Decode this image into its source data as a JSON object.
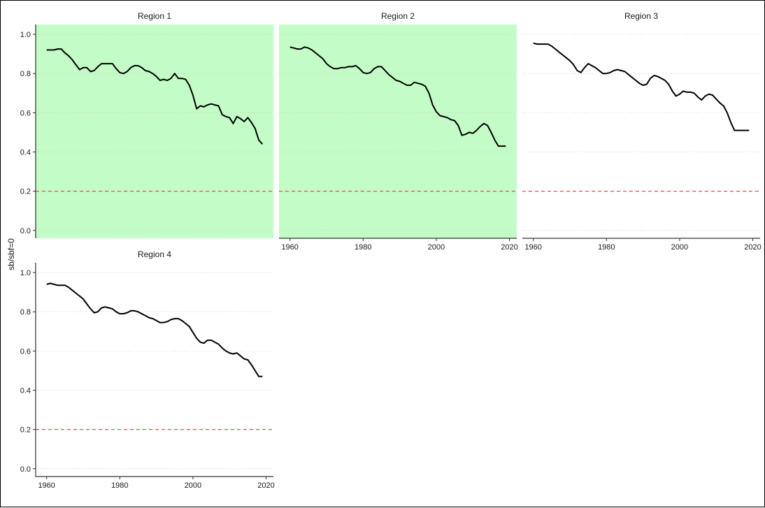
{
  "chart_data": {
    "type": "line",
    "ylabel": "sb/sbf=0",
    "xlabel": "",
    "xlim": [
      1957,
      2022
    ],
    "ylim": [
      -0.04,
      1.05
    ],
    "x_ticks": [
      1960,
      1980,
      2000,
      2020
    ],
    "y_ticks": [
      0.0,
      0.2,
      0.4,
      0.6,
      0.8,
      1.0
    ],
    "y_tick_labels": [
      "0.0",
      "0.2",
      "0.4",
      "0.6",
      "0.8",
      "1.0"
    ],
    "reference_line": {
      "y": 0.2,
      "style": "dashed",
      "color": "#e05555"
    },
    "grid": "horizontal dotted",
    "highlight_color": "#c3fcc7",
    "panels": [
      {
        "title": "Region 1",
        "highlight": true,
        "series": [
          {
            "x": [
              1960,
              1961,
              1962,
              1963,
              1964,
              1965,
              1966,
              1967,
              1968,
              1969,
              1970,
              1971,
              1972,
              1973,
              1974,
              1975,
              1976,
              1977,
              1978,
              1979,
              1980,
              1981,
              1982,
              1983,
              1984,
              1985,
              1986,
              1987,
              1988,
              1989,
              1990,
              1991,
              1992,
              1993,
              1994,
              1995,
              1996,
              1997,
              1998,
              1999,
              2000,
              2001,
              2002,
              2003,
              2004,
              2005,
              2006,
              2007,
              2008,
              2009,
              2010,
              2011,
              2012,
              2013,
              2014,
              2015,
              2016,
              2017,
              2018,
              2019
            ],
            "y": [
              0.92,
              0.92,
              0.92,
              0.925,
              0.925,
              0.905,
              0.89,
              0.87,
              0.845,
              0.82,
              0.83,
              0.83,
              0.81,
              0.815,
              0.835,
              0.85,
              0.85,
              0.85,
              0.85,
              0.825,
              0.805,
              0.8,
              0.81,
              0.83,
              0.84,
              0.84,
              0.83,
              0.815,
              0.81,
              0.8,
              0.785,
              0.765,
              0.77,
              0.765,
              0.775,
              0.8,
              0.775,
              0.775,
              0.77,
              0.74,
              0.69,
              0.62,
              0.635,
              0.63,
              0.64,
              0.645,
              0.64,
              0.635,
              0.59,
              0.58,
              0.575,
              0.545,
              0.58,
              0.57,
              0.555,
              0.575,
              0.55,
              0.52,
              0.46,
              0.44
            ]
          }
        ]
      },
      {
        "title": "Region 2",
        "highlight": true,
        "series": [
          {
            "x": [
              1960,
              1961,
              1962,
              1963,
              1964,
              1965,
              1966,
              1967,
              1968,
              1969,
              1970,
              1971,
              1972,
              1973,
              1974,
              1975,
              1976,
              1977,
              1978,
              1979,
              1980,
              1981,
              1982,
              1983,
              1984,
              1985,
              1986,
              1987,
              1988,
              1989,
              1990,
              1991,
              1992,
              1993,
              1994,
              1995,
              1996,
              1997,
              1998,
              1999,
              2000,
              2001,
              2002,
              2003,
              2004,
              2005,
              2006,
              2007,
              2008,
              2009,
              2010,
              2011,
              2012,
              2013,
              2014,
              2015,
              2016,
              2017,
              2018,
              2019
            ],
            "y": [
              0.935,
              0.93,
              0.925,
              0.925,
              0.935,
              0.93,
              0.92,
              0.905,
              0.89,
              0.875,
              0.85,
              0.835,
              0.825,
              0.825,
              0.83,
              0.83,
              0.835,
              0.835,
              0.84,
              0.825,
              0.805,
              0.8,
              0.805,
              0.825,
              0.835,
              0.835,
              0.815,
              0.795,
              0.78,
              0.765,
              0.76,
              0.75,
              0.74,
              0.74,
              0.755,
              0.75,
              0.745,
              0.735,
              0.7,
              0.64,
              0.605,
              0.585,
              0.58,
              0.575,
              0.565,
              0.56,
              0.535,
              0.485,
              0.49,
              0.5,
              0.495,
              0.51,
              0.53,
              0.545,
              0.535,
              0.5,
              0.46,
              0.43,
              0.43,
              0.43
            ]
          }
        ]
      },
      {
        "title": "Region 3",
        "highlight": false,
        "series": [
          {
            "x": [
              1960,
              1961,
              1962,
              1963,
              1964,
              1965,
              1966,
              1967,
              1968,
              1969,
              1970,
              1971,
              1972,
              1973,
              1974,
              1975,
              1976,
              1977,
              1978,
              1979,
              1980,
              1981,
              1982,
              1983,
              1984,
              1985,
              1986,
              1987,
              1988,
              1989,
              1990,
              1991,
              1992,
              1993,
              1994,
              1995,
              1996,
              1997,
              1998,
              1999,
              2000,
              2001,
              2002,
              2003,
              2004,
              2005,
              2006,
              2007,
              2008,
              2009,
              2010,
              2011,
              2012,
              2013,
              2014,
              2015,
              2016,
              2017,
              2018,
              2019
            ],
            "y": [
              0.955,
              0.95,
              0.95,
              0.95,
              0.95,
              0.94,
              0.925,
              0.91,
              0.895,
              0.88,
              0.865,
              0.845,
              0.815,
              0.805,
              0.83,
              0.85,
              0.84,
              0.83,
              0.815,
              0.8,
              0.8,
              0.805,
              0.815,
              0.82,
              0.815,
              0.81,
              0.795,
              0.78,
              0.765,
              0.75,
              0.74,
              0.745,
              0.775,
              0.79,
              0.785,
              0.775,
              0.765,
              0.745,
              0.71,
              0.685,
              0.695,
              0.71,
              0.705,
              0.705,
              0.7,
              0.68,
              0.665,
              0.685,
              0.695,
              0.69,
              0.67,
              0.65,
              0.635,
              0.6,
              0.55,
              0.51,
              0.51,
              0.51,
              0.51,
              0.51
            ]
          }
        ]
      },
      {
        "title": "Region 4",
        "highlight": false,
        "series": [
          {
            "x": [
              1960,
              1961,
              1962,
              1963,
              1964,
              1965,
              1966,
              1967,
              1968,
              1969,
              1970,
              1971,
              1972,
              1973,
              1974,
              1975,
              1976,
              1977,
              1978,
              1979,
              1980,
              1981,
              1982,
              1983,
              1984,
              1985,
              1986,
              1987,
              1988,
              1989,
              1990,
              1991,
              1992,
              1993,
              1994,
              1995,
              1996,
              1997,
              1998,
              1999,
              2000,
              2001,
              2002,
              2003,
              2004,
              2005,
              2006,
              2007,
              2008,
              2009,
              2010,
              2011,
              2012,
              2013,
              2014,
              2015,
              2016,
              2017,
              2018,
              2019
            ],
            "y": [
              0.94,
              0.945,
              0.94,
              0.935,
              0.935,
              0.935,
              0.925,
              0.91,
              0.895,
              0.88,
              0.865,
              0.84,
              0.815,
              0.795,
              0.8,
              0.82,
              0.825,
              0.82,
              0.815,
              0.8,
              0.79,
              0.79,
              0.795,
              0.805,
              0.805,
              0.8,
              0.79,
              0.78,
              0.77,
              0.765,
              0.755,
              0.745,
              0.745,
              0.75,
              0.76,
              0.765,
              0.765,
              0.755,
              0.74,
              0.725,
              0.695,
              0.665,
              0.645,
              0.64,
              0.655,
              0.655,
              0.645,
              0.635,
              0.615,
              0.6,
              0.59,
              0.585,
              0.59,
              0.575,
              0.56,
              0.555,
              0.53,
              0.5,
              0.47,
              0.47
            ]
          }
        ]
      }
    ]
  }
}
